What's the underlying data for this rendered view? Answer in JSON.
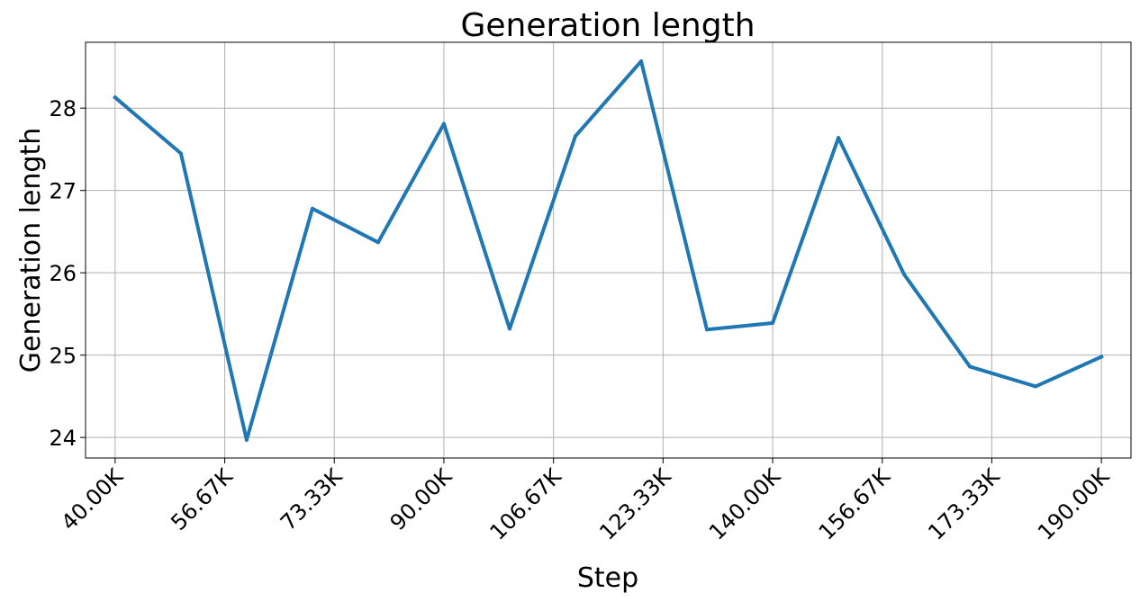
{
  "chart_data": {
    "type": "line",
    "title": "Generation length",
    "xlabel": "Step",
    "ylabel": "Generation length",
    "xlim": [
      35500,
      194500
    ],
    "ylim": [
      23.75,
      28.8
    ],
    "grid": true,
    "x_ticks": [
      40000,
      56670,
      73330,
      90000,
      106670,
      123330,
      140000,
      156670,
      173330,
      190000
    ],
    "x_tick_labels": [
      "40.00K",
      "56.67K",
      "73.33K",
      "90.00K",
      "106.67K",
      "123.33K",
      "140.00K",
      "156.67K",
      "173.33K",
      "190.00K"
    ],
    "y_ticks": [
      24,
      25,
      26,
      27,
      28
    ],
    "y_tick_labels": [
      "24",
      "25",
      "26",
      "27",
      "28"
    ],
    "series": [
      {
        "color": "#1f77b4",
        "x": [
          40000,
          50000,
          60000,
          70000,
          80000,
          90000,
          100000,
          110000,
          120000,
          130000,
          140000,
          150000,
          160000,
          170000,
          180000,
          190000
        ],
        "y": [
          28.13,
          27.45,
          23.97,
          26.78,
          26.37,
          27.81,
          25.32,
          27.66,
          28.57,
          25.31,
          25.39,
          27.64,
          25.98,
          24.86,
          24.62,
          24.98
        ]
      }
    ]
  }
}
